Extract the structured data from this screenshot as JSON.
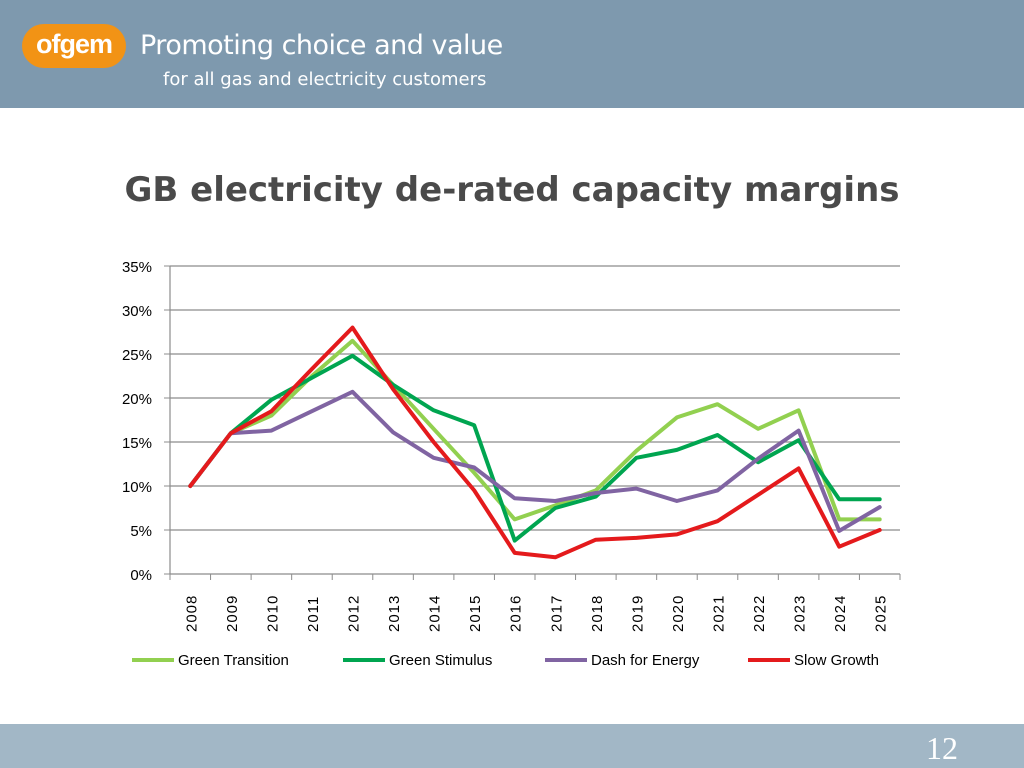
{
  "header": {
    "logo_text": "ofgem",
    "tagline_line1": "Promoting choice and value",
    "tagline_line2": "for all gas and electricity customers",
    "header_color": "#7e99ae",
    "logo_color": "#f29315"
  },
  "slide": {
    "title": "GB electricity de-rated capacity margins",
    "page_number": "12"
  },
  "chart_data": {
    "type": "line",
    "title": "GB electricity de-rated capacity margins",
    "xlabel": "",
    "ylabel": "",
    "ylim": [
      0,
      35
    ],
    "y_ticks": [
      "0%",
      "5%",
      "10%",
      "15%",
      "20%",
      "25%",
      "30%",
      "35%"
    ],
    "grid": true,
    "legend_position": "bottom",
    "categories": [
      "2008",
      "2009",
      "2010",
      "2011",
      "2012",
      "2013",
      "2014",
      "2015",
      "2016",
      "2017",
      "2018",
      "2019",
      "2020",
      "2021",
      "2022",
      "2023",
      "2024",
      "2025"
    ],
    "series": [
      {
        "name": "Green Transition",
        "color": "#92d050",
        "values": [
          10,
          16,
          18,
          22.5,
          26.5,
          21.5,
          16.5,
          11.5,
          6.2,
          7.8,
          9.5,
          14,
          17.8,
          19.3,
          16.5,
          18.6,
          6.2,
          6.2
        ]
      },
      {
        "name": "Green Stimulus",
        "color": "#00a550",
        "values": [
          10,
          16,
          19.8,
          22.3,
          24.8,
          21.5,
          18.6,
          16.9,
          3.8,
          7.5,
          8.8,
          13.2,
          14.1,
          15.8,
          12.7,
          15.2,
          8.5,
          8.5
        ]
      },
      {
        "name": "Dash for Energy",
        "color": "#8064a2",
        "values": [
          10,
          16,
          16.3,
          18.5,
          20.7,
          16.1,
          13.2,
          12.1,
          8.6,
          8.3,
          9.2,
          9.7,
          8.3,
          9.5,
          13.1,
          16.3,
          4.9,
          7.6
        ]
      },
      {
        "name": "Slow Growth",
        "color": "#e41a1c",
        "values": [
          10,
          16,
          18.5,
          23.3,
          28,
          21,
          15,
          9.5,
          2.4,
          1.9,
          3.9,
          4.1,
          4.5,
          6,
          9,
          12,
          3.1,
          5
        ]
      }
    ]
  }
}
